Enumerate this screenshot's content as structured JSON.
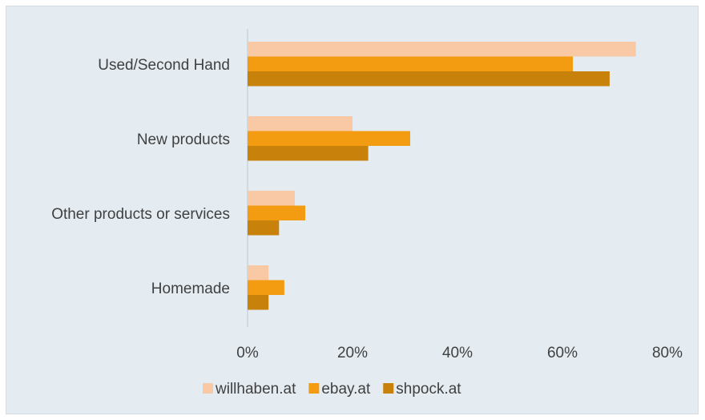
{
  "chart_data": {
    "type": "bar",
    "orientation": "horizontal",
    "categories": [
      "Used/Second Hand",
      "New products",
      "Other products or services",
      "Homemade"
    ],
    "series": [
      {
        "name": "willhaben.at",
        "color": "#f9c8a4",
        "values": [
          74,
          20,
          9,
          4
        ]
      },
      {
        "name": "ebay.at",
        "color": "#f39c12",
        "values": [
          62,
          31,
          11,
          7
        ]
      },
      {
        "name": "shpock.at",
        "color": "#c8810a",
        "values": [
          69,
          23,
          6,
          4
        ]
      }
    ],
    "xlim": [
      0,
      80
    ],
    "xticks": [
      "0%",
      "20%",
      "40%",
      "60%",
      "80%"
    ],
    "legend_position": "bottom",
    "grid": false,
    "axis_color": "#c8d3db",
    "background": "#e4ecf2"
  }
}
